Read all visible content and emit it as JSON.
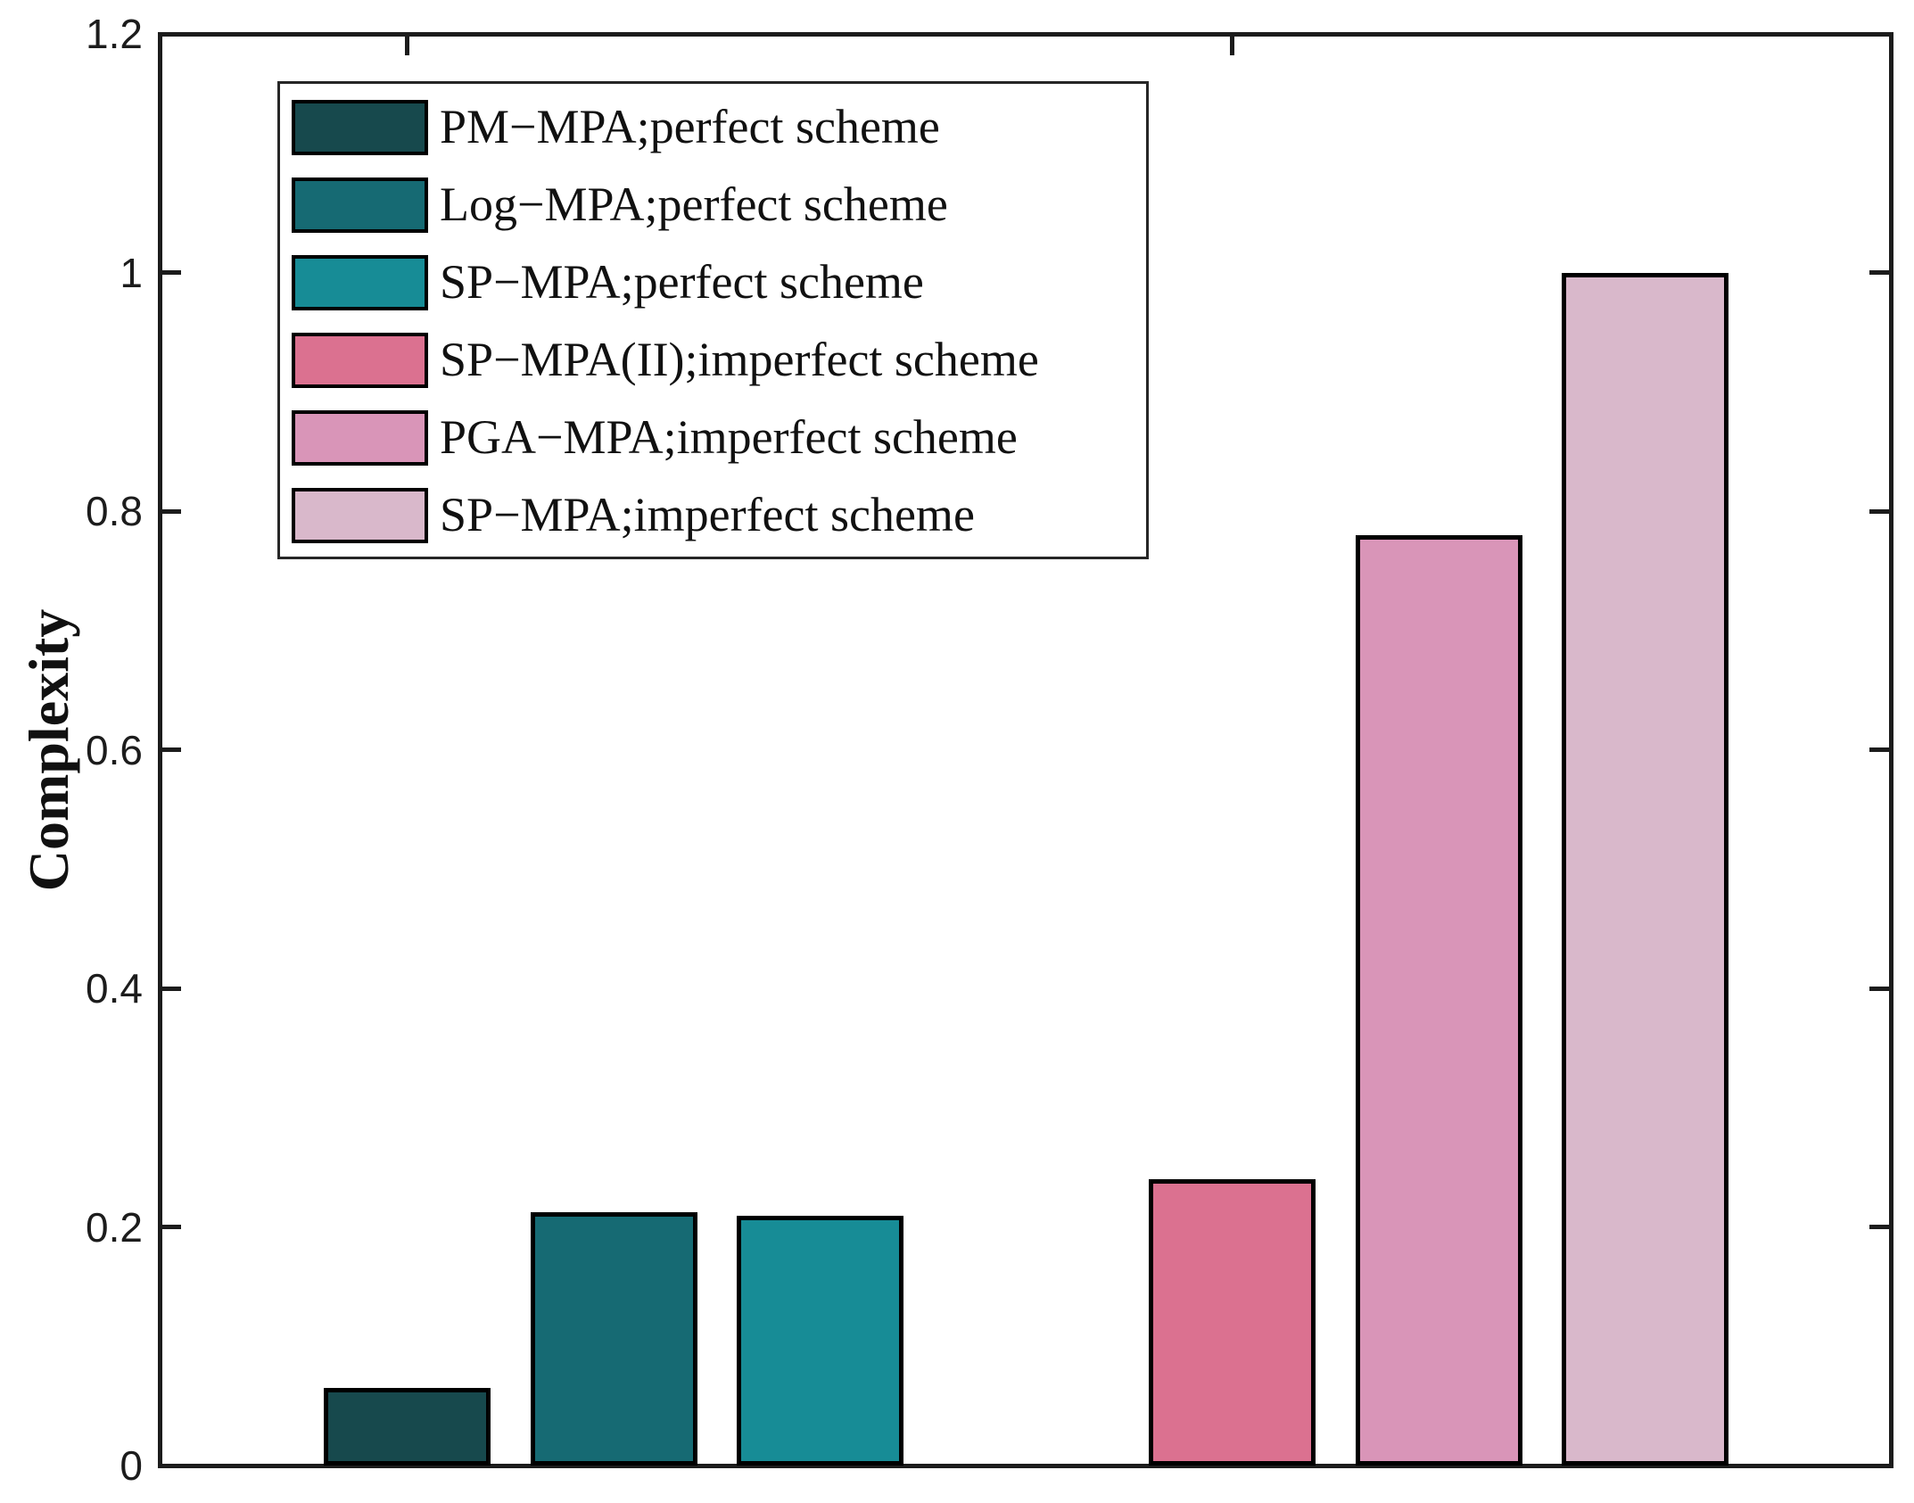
{
  "chart_data": {
    "type": "bar",
    "title": "",
    "xlabel": "",
    "ylabel": "Complexity",
    "ylim": [
      0,
      1.2
    ],
    "ytick_values": [
      0,
      0.2,
      0.4,
      0.6,
      0.8,
      1,
      1.2
    ],
    "ytick_labels": [
      "0",
      "0.2",
      "0.4",
      "0.6",
      "0.8",
      "1",
      "1.2"
    ],
    "grid": false,
    "legend_position": "top-left-inside",
    "axis_color": "#1c1c1c",
    "bar_border_color": "#000000",
    "series": [
      {
        "name": "PM−MPA;perfect scheme",
        "value": 0.065,
        "group": 0,
        "color": "#17494D"
      },
      {
        "name": "Log−MPA;perfect scheme",
        "value": 0.212,
        "group": 0,
        "color": "#166A73"
      },
      {
        "name": "SP−MPA;perfect scheme",
        "value": 0.209,
        "group": 0,
        "color": "#178C96"
      },
      {
        "name": "SP−MPA(II);imperfect scheme",
        "value": 0.24,
        "group": 1,
        "color": "#DB7190"
      },
      {
        "name": "PGA−MPA;imperfect scheme",
        "value": 0.78,
        "group": 1,
        "color": "#D995B8"
      },
      {
        "name": "SP−MPA;imperfect scheme",
        "value": 1.0,
        "group": 1,
        "color": "#D9B8CB"
      }
    ]
  }
}
